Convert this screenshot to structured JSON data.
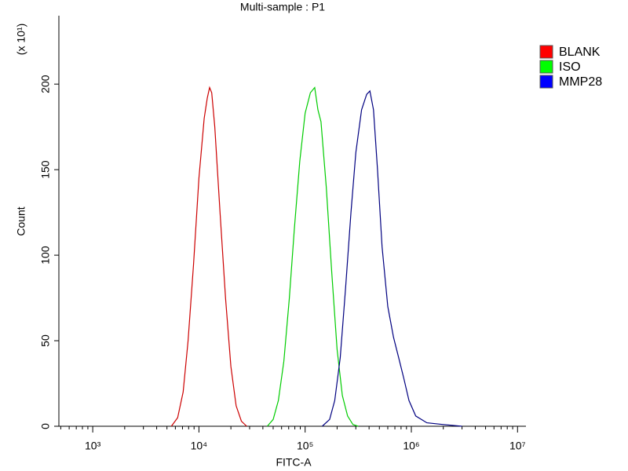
{
  "chart_data": {
    "type": "histogram-overlay",
    "title": "Multi-sample : P1",
    "x_label": "FITC-A",
    "y_label": "Count",
    "y_scale_label": "(x 10¹)",
    "x_log": true,
    "xlim": [
      480,
      12000000
    ],
    "xticks": [
      {
        "value": 1000,
        "label": "10³"
      },
      {
        "value": 10000,
        "label": "10⁴"
      },
      {
        "value": 100000,
        "label": "10⁵"
      },
      {
        "value": 1000000,
        "label": "10⁶"
      },
      {
        "value": 10000000,
        "label": "10⁷"
      }
    ],
    "minor_xticks": [
      500,
      600,
      700,
      800,
      900,
      2000,
      3000,
      4000,
      5000,
      6000,
      7000,
      8000,
      9000,
      20000,
      30000,
      40000,
      50000,
      60000,
      70000,
      80000,
      90000,
      200000,
      300000,
      400000,
      500000,
      600000,
      700000,
      800000,
      900000,
      2000000,
      3000000,
      4000000,
      5000000,
      6000000,
      7000000,
      8000000,
      9000000
    ],
    "ylim": [
      0,
      240
    ],
    "yticks": [
      0,
      50,
      100,
      150,
      200
    ],
    "legend": "top-right",
    "series": [
      {
        "name": "BLANK",
        "color": "#cc0000",
        "legend_color": "#ff0000",
        "x": [
          5500,
          6300,
          7100,
          7900,
          8900,
          10000,
          11200,
          12000,
          12600,
          13200,
          14100,
          15800,
          17800,
          20000,
          22400,
          25100,
          28200
        ],
        "values": [
          0,
          5,
          20,
          50,
          95,
          145,
          180,
          192,
          198,
          195,
          175,
          125,
          75,
          35,
          12,
          3,
          0
        ]
      },
      {
        "name": "ISO",
        "color": "#00cc00",
        "legend_color": "#00ff00",
        "x": [
          44000,
          50000,
          56000,
          63000,
          71000,
          79000,
          89000,
          100000,
          112000,
          123000,
          132000,
          141000,
          158000,
          178000,
          200000,
          224000,
          251000,
          282000,
          316000
        ],
        "values": [
          0,
          4,
          15,
          38,
          75,
          115,
          155,
          183,
          195,
          198,
          185,
          178,
          140,
          90,
          45,
          18,
          6,
          1,
          0
        ]
      },
      {
        "name": "MMP28",
        "color": "#000080",
        "legend_color": "#0000ff",
        "x": [
          145000,
          170000,
          190000,
          214000,
          240000,
          270000,
          300000,
          340000,
          380000,
          407000,
          440000,
          480000,
          530000,
          600000,
          680000,
          760000,
          850000,
          950000,
          1100000,
          1400000,
          2000000,
          3000000
        ],
        "values": [
          0,
          4,
          15,
          40,
          80,
          125,
          160,
          185,
          194,
          196,
          185,
          150,
          105,
          70,
          52,
          40,
          28,
          15,
          6,
          2,
          1,
          0
        ]
      }
    ]
  }
}
